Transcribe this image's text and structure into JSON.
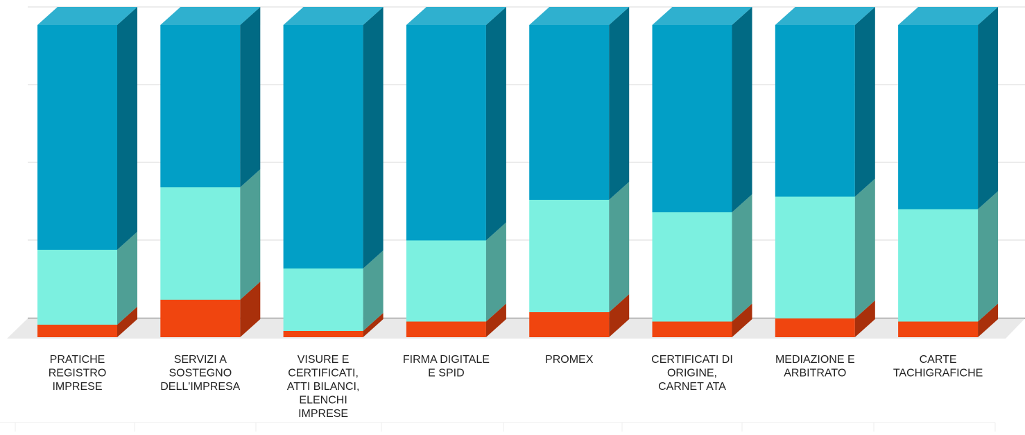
{
  "chart_data": {
    "type": "bar",
    "stacked": true,
    "style": "3d",
    "orientation": "vertical",
    "title": "",
    "xlabel": "",
    "ylabel": "",
    "ylim": [
      0,
      100
    ],
    "grid": true,
    "legend": "none",
    "categories": [
      "PRATICHE REGISTRO IMPRESE",
      "SERVIZI A SOSTEGNO DELL'IMPRESA",
      "VISURE E CERTIFICATI, ATTI BILANCI, ELENCHI IMPRESE",
      "FIRMA DIGITALE E SPID",
      "PROMEX",
      "CERTIFICATI DI ORIGINE, CARNET ATA",
      "MEDIAZIONE E ARBITRATO",
      "CARTE TACHIGRAFICHE"
    ],
    "category_lines": [
      [
        "PRATICHE",
        "REGISTRO",
        "IMPRESE"
      ],
      [
        "SERVIZI A",
        "SOSTEGNO",
        "DELL'IMPRESA"
      ],
      [
        "VISURE E",
        "CERTIFICATI,",
        "ATTI BILANCI,",
        "ELENCHI",
        "IMPRESE"
      ],
      [
        "FIRMA DIGITALE",
        "E SPID"
      ],
      [
        "PROMEX"
      ],
      [
        "CERTIFICATI DI",
        "ORIGINE,",
        "CARNET ATA"
      ],
      [
        "MEDIAZIONE E",
        "ARBITRATO"
      ],
      [
        "CARTE",
        "TACHIGRAFICHE"
      ]
    ],
    "series": [
      {
        "values": [
          4,
          12,
          2,
          5,
          8,
          5,
          6,
          5
        ],
        "color": "#f0450f",
        "side_color": "#a9300b"
      },
      {
        "values": [
          24,
          36,
          20,
          26,
          36,
          35,
          39,
          36
        ],
        "color": "#7cf0e0",
        "side_color": "#4f9f95"
      },
      {
        "values": [
          72,
          52,
          78,
          69,
          56,
          60,
          55,
          59
        ],
        "color": "#029fc6",
        "side_color": "#016a84"
      }
    ]
  }
}
